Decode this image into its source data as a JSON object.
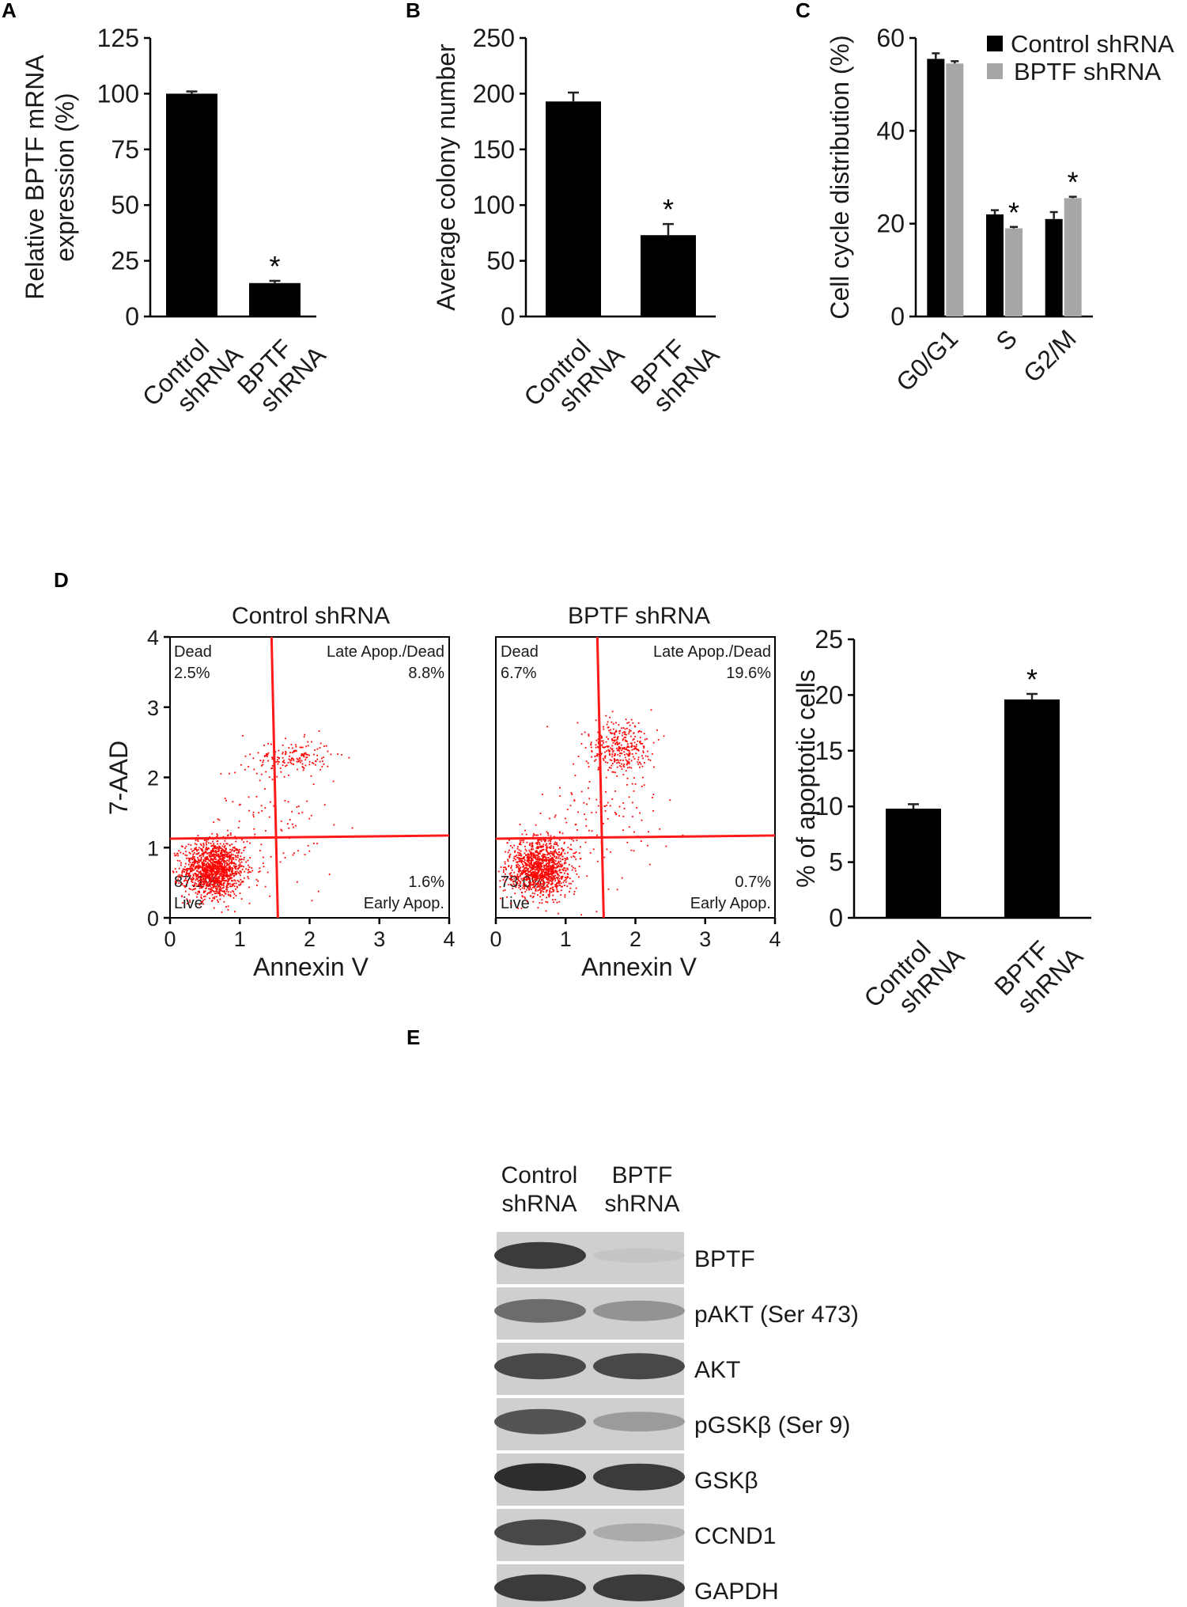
{
  "colors": {
    "control": "#000000",
    "bptf": "#a6a6a6",
    "dots": "#ff0000",
    "gate": "#ff1a1a"
  },
  "panel_labels": {
    "A": "A",
    "B": "B",
    "C": "C",
    "D": "D",
    "E": "E"
  },
  "significance_mark": "*",
  "chart_data": [
    {
      "id": "A",
      "type": "bar",
      "ylabel_lines": [
        "Relative BPTF mRNA",
        "expression (%)"
      ],
      "ylim": [
        0,
        125
      ],
      "yticks": [
        "0",
        "25",
        "50",
        "75",
        "100",
        "125"
      ],
      "categories": [
        [
          "Control",
          "shRNA"
        ],
        [
          "BPTF",
          "shRNA"
        ]
      ],
      "values": [
        100,
        15
      ],
      "errors": [
        1,
        1
      ],
      "significant": [
        false,
        true
      ]
    },
    {
      "id": "B",
      "type": "bar",
      "ylabel": "Average colony number",
      "ylim": [
        0,
        250
      ],
      "yticks": [
        "0",
        "50",
        "100",
        "150",
        "200",
        "250"
      ],
      "categories": [
        [
          "Control",
          "shRNA"
        ],
        [
          "BPTF",
          "shRNA"
        ]
      ],
      "values": [
        193,
        73
      ],
      "errors": [
        8,
        10
      ],
      "significant": [
        false,
        true
      ]
    },
    {
      "id": "C",
      "type": "bar",
      "ylabel": "Cell cycle distribution (%)",
      "ylim": [
        0,
        60
      ],
      "yticks": [
        "0",
        "20",
        "40",
        "60"
      ],
      "categories": [
        "G0/G1",
        "S",
        "G2/M"
      ],
      "series": [
        {
          "name": "Control shRNA",
          "values": [
            55.5,
            22,
            21
          ],
          "errors": [
            1.2,
            0.9,
            1.5
          ],
          "significant": [
            false,
            false,
            false
          ]
        },
        {
          "name": "BPTF shRNA",
          "values": [
            54.5,
            19,
            25.5
          ],
          "errors": [
            0.5,
            0.3,
            0.3
          ],
          "significant": [
            false,
            true,
            true
          ]
        }
      ]
    },
    {
      "id": "D-control",
      "type": "scatter",
      "title": "Control shRNA",
      "xlabel": "Annexin V",
      "ylabel": "7-AAD",
      "xlim": [
        0,
        4
      ],
      "ylim": [
        0,
        4
      ],
      "xticks": [
        "0",
        "1",
        "2",
        "3",
        "4"
      ],
      "yticks": [
        "0",
        "1",
        "2",
        "3",
        "4"
      ],
      "gate_x": 1.5,
      "gate_y": 1.15,
      "quadrants": {
        "ul_name": "Dead",
        "ul_pct": "2.5%",
        "ur_name": "Late Apop./Dead",
        "ur_pct": "8.8%",
        "ll_name": "Live",
        "ll_pct": "87.1%",
        "lr_name": "Early Apop.",
        "lr_pct": "1.6%"
      },
      "clusters": [
        {
          "cx": 0.62,
          "cy": 0.7,
          "sx": 0.22,
          "sy": 0.2,
          "n": 1400
        },
        {
          "cx": 1.75,
          "cy": 2.3,
          "sx": 0.28,
          "sy": 0.12,
          "n": 160
        },
        {
          "cx": 1.45,
          "cy": 1.3,
          "sx": 0.45,
          "sy": 0.55,
          "n": 110
        }
      ]
    },
    {
      "id": "D-bptf",
      "type": "scatter",
      "title": "BPTF shRNA",
      "xlabel": "Annexin V",
      "xlim": [
        0,
        4
      ],
      "ylim": [
        0,
        4
      ],
      "xticks": [
        "0",
        "1",
        "2",
        "3",
        "4"
      ],
      "yticks": [],
      "gate_x": 1.5,
      "gate_y": 1.15,
      "quadrants": {
        "ul_name": "Dead",
        "ul_pct": "6.7%",
        "ur_name": "Late Apop./Dead",
        "ur_pct": "19.6%",
        "ll_name": "Live",
        "ll_pct": "73.0%",
        "lr_name": "Early Apop.",
        "lr_pct": "0.7%"
      },
      "clusters": [
        {
          "cx": 0.62,
          "cy": 0.72,
          "sx": 0.22,
          "sy": 0.2,
          "n": 1200
        },
        {
          "cx": 1.75,
          "cy": 2.45,
          "sx": 0.22,
          "sy": 0.2,
          "n": 330
        },
        {
          "cx": 1.5,
          "cy": 1.5,
          "sx": 0.4,
          "sy": 0.6,
          "n": 130
        }
      ]
    },
    {
      "id": "D-bar",
      "type": "bar",
      "ylabel": "% of apoptotic cells",
      "ylim": [
        0,
        25
      ],
      "yticks": [
        "0",
        "5",
        "10",
        "15",
        "20",
        "25"
      ],
      "categories": [
        [
          "Control",
          "shRNA"
        ],
        [
          "BPTF",
          "shRNA"
        ]
      ],
      "values": [
        9.8,
        19.6
      ],
      "errors": [
        0.4,
        0.5
      ],
      "significant": [
        false,
        true
      ]
    }
  ],
  "blot": {
    "lanes": [
      [
        "Control",
        "shRNA"
      ],
      [
        "BPTF",
        "shRNA"
      ]
    ],
    "rows": [
      {
        "label": "BPTF",
        "control": 0.9,
        "bptf": 0.12
      },
      {
        "label": "pAKT (Ser 473)",
        "control": 0.7,
        "bptf": 0.5
      },
      {
        "label": "AKT",
        "control": 0.85,
        "bptf": 0.85
      },
      {
        "label": "pGSKβ (Ser 9)",
        "control": 0.8,
        "bptf": 0.45
      },
      {
        "label": "GSKβ",
        "control": 0.95,
        "bptf": 0.9
      },
      {
        "label": "CCND1",
        "control": 0.85,
        "bptf": 0.35
      },
      {
        "label": "GAPDH",
        "control": 0.9,
        "bptf": 0.9
      }
    ]
  }
}
